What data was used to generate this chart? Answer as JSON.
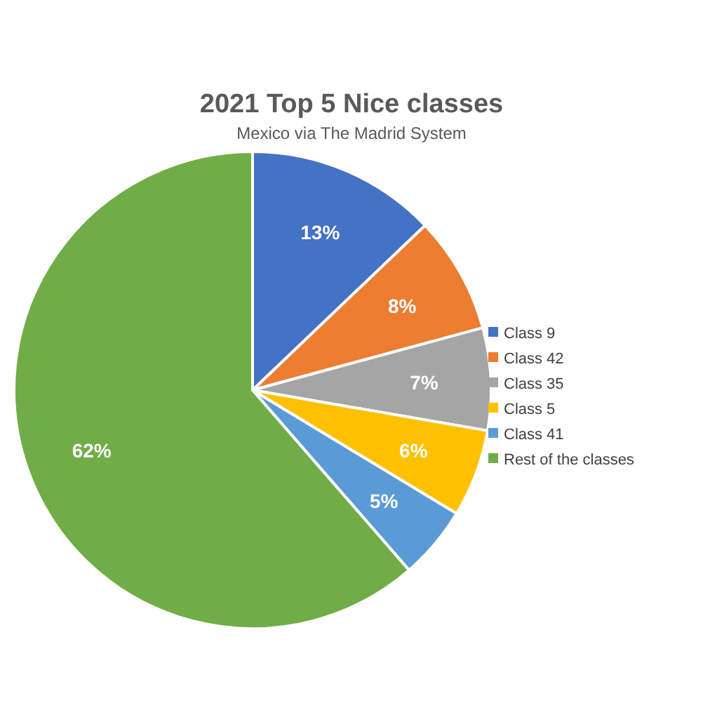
{
  "chart_data": {
    "type": "pie",
    "title": "2021 Top 5 Nice classes",
    "subtitle": "Mexico via The Madrid System",
    "categories": [
      "Class 9",
      "Class 42",
      "Class 35",
      "Class 5",
      "Class 41",
      "Rest of the classes"
    ],
    "values": [
      13,
      8,
      7,
      6,
      5,
      62
    ],
    "colors": [
      "#4472c4",
      "#ed7d31",
      "#a5a5a5",
      "#ffc000",
      "#5b9bd5",
      "#70ad47"
    ],
    "value_labels": [
      "13%",
      "8%",
      "7%",
      "6%",
      "5%",
      "62%"
    ],
    "legend": "right"
  }
}
